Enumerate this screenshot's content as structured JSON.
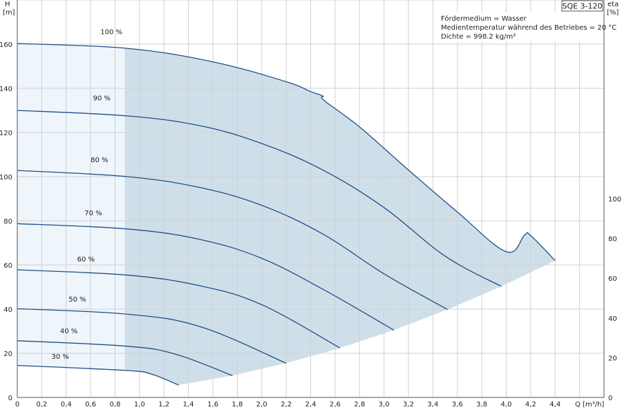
{
  "chart_data": {
    "type": "line",
    "title": "SQE 3-120",
    "xlabel": "Q [m³/h]",
    "ylabel_left_line1": "H",
    "ylabel_left_line2": "[m]",
    "ylabel_right_line1": "eta",
    "ylabel_right_line2": "[%]",
    "xlim": [
      0,
      4.8
    ],
    "ylim": [
      0,
      180
    ],
    "x_ticks": [
      0,
      0.2,
      0.4,
      0.6,
      0.8,
      1.0,
      1.2,
      1.4,
      1.6,
      1.8,
      2.0,
      2.2,
      2.4,
      2.6,
      2.8,
      3.0,
      3.2,
      3.4,
      3.6,
      3.8,
      4.0,
      4.2,
      4.4
    ],
    "x_tick_labels": [
      "0",
      "0,2",
      "0,4",
      "0,6",
      "0,8",
      "1,0",
      "1,2",
      "1,4",
      "1,6",
      "1,8",
      "2,0",
      "2,2",
      "2,4",
      "2,6",
      "2,8",
      "3,0",
      "3,2",
      "3,4",
      "3,6",
      "3,8",
      "4,0",
      "4,2",
      "4,4"
    ],
    "y_ticks": [
      0,
      20,
      40,
      60,
      80,
      100,
      120,
      140,
      160
    ],
    "y_tick_labels": [
      "0",
      "20",
      "40",
      "60",
      "80",
      "100",
      "120",
      "140",
      "160"
    ],
    "eta_ticks": [
      0,
      20,
      40,
      60,
      80,
      100
    ],
    "eta_tick_labels": [
      "0",
      "20",
      "40",
      "60",
      "80",
      "100"
    ],
    "grid": true,
    "info_lines": [
      "Fördermedium = Wasser",
      "Medientemperatur während des Betriebes = 20 °C",
      "Dichte = 998.2 kg/m³"
    ],
    "min_flow": 0.88,
    "series": [
      {
        "name": "100 %",
        "h0": 160.3,
        "q_end": 4.4,
        "points": [
          [
            0,
            160.3
          ],
          [
            0.9,
            158.1
          ],
          [
            1.6,
            152.0
          ],
          [
            2.2,
            143.0
          ],
          [
            2.4,
            138.5
          ],
          [
            2.5,
            136.5
          ],
          [
            2.51,
            134.5
          ],
          [
            2.8,
            122.5
          ],
          [
            3.2,
            103.0
          ],
          [
            3.6,
            84.0
          ],
          [
            4.0,
            66.0
          ],
          [
            4.15,
            73.5
          ],
          [
            4.2,
            73.3
          ],
          [
            4.4,
            62.0
          ]
        ]
      },
      {
        "name": "90 %",
        "h0": 130.0,
        "q_end": 3.96,
        "points": [
          [
            0,
            130.0
          ],
          [
            0.9,
            127.5
          ],
          [
            1.5,
            123.0
          ],
          [
            2.0,
            115.0
          ],
          [
            2.5,
            103.0
          ],
          [
            3.0,
            86.0
          ],
          [
            3.5,
            64.0
          ],
          [
            3.96,
            50.3
          ]
        ]
      },
      {
        "name": "80 %",
        "h0": 102.8,
        "q_end": 3.52,
        "points": [
          [
            0,
            102.8
          ],
          [
            0.9,
            100.0
          ],
          [
            1.5,
            95.0
          ],
          [
            2.0,
            87.0
          ],
          [
            2.5,
            74.0
          ],
          [
            3.0,
            56.0
          ],
          [
            3.52,
            39.8
          ]
        ]
      },
      {
        "name": "70 %",
        "h0": 78.7,
        "q_end": 3.08,
        "points": [
          [
            0,
            78.7
          ],
          [
            0.9,
            76.3
          ],
          [
            1.5,
            71.5
          ],
          [
            2.0,
            63.0
          ],
          [
            2.5,
            49.0
          ],
          [
            3.08,
            30.5
          ]
        ]
      },
      {
        "name": "60 %",
        "h0": 57.8,
        "q_end": 2.64,
        "points": [
          [
            0,
            57.8
          ],
          [
            0.9,
            55.4
          ],
          [
            1.5,
            50.5
          ],
          [
            2.0,
            42.0
          ],
          [
            2.64,
            22.4
          ]
        ]
      },
      {
        "name": "50 %",
        "h0": 40.2,
        "q_end": 2.2,
        "points": [
          [
            0,
            40.2
          ],
          [
            0.9,
            37.7
          ],
          [
            1.5,
            32.0
          ],
          [
            2.2,
            15.5
          ]
        ]
      },
      {
        "name": "40 %",
        "h0": 25.7,
        "q_end": 1.76,
        "points": [
          [
            0,
            25.7
          ],
          [
            0.9,
            23.2
          ],
          [
            1.3,
            19.5
          ],
          [
            1.76,
            9.9
          ]
        ]
      },
      {
        "name": "30 %",
        "h0": 14.5,
        "q_end": 1.32,
        "points": [
          [
            0,
            14.5
          ],
          [
            0.9,
            12.2
          ],
          [
            1.1,
            10.5
          ],
          [
            1.32,
            5.6
          ]
        ]
      }
    ],
    "colors": {
      "curve": "#1f4e85",
      "fill_main": "#cfdfea",
      "fill_low": "#eef5fb",
      "grid": "#d0d0d0"
    }
  }
}
